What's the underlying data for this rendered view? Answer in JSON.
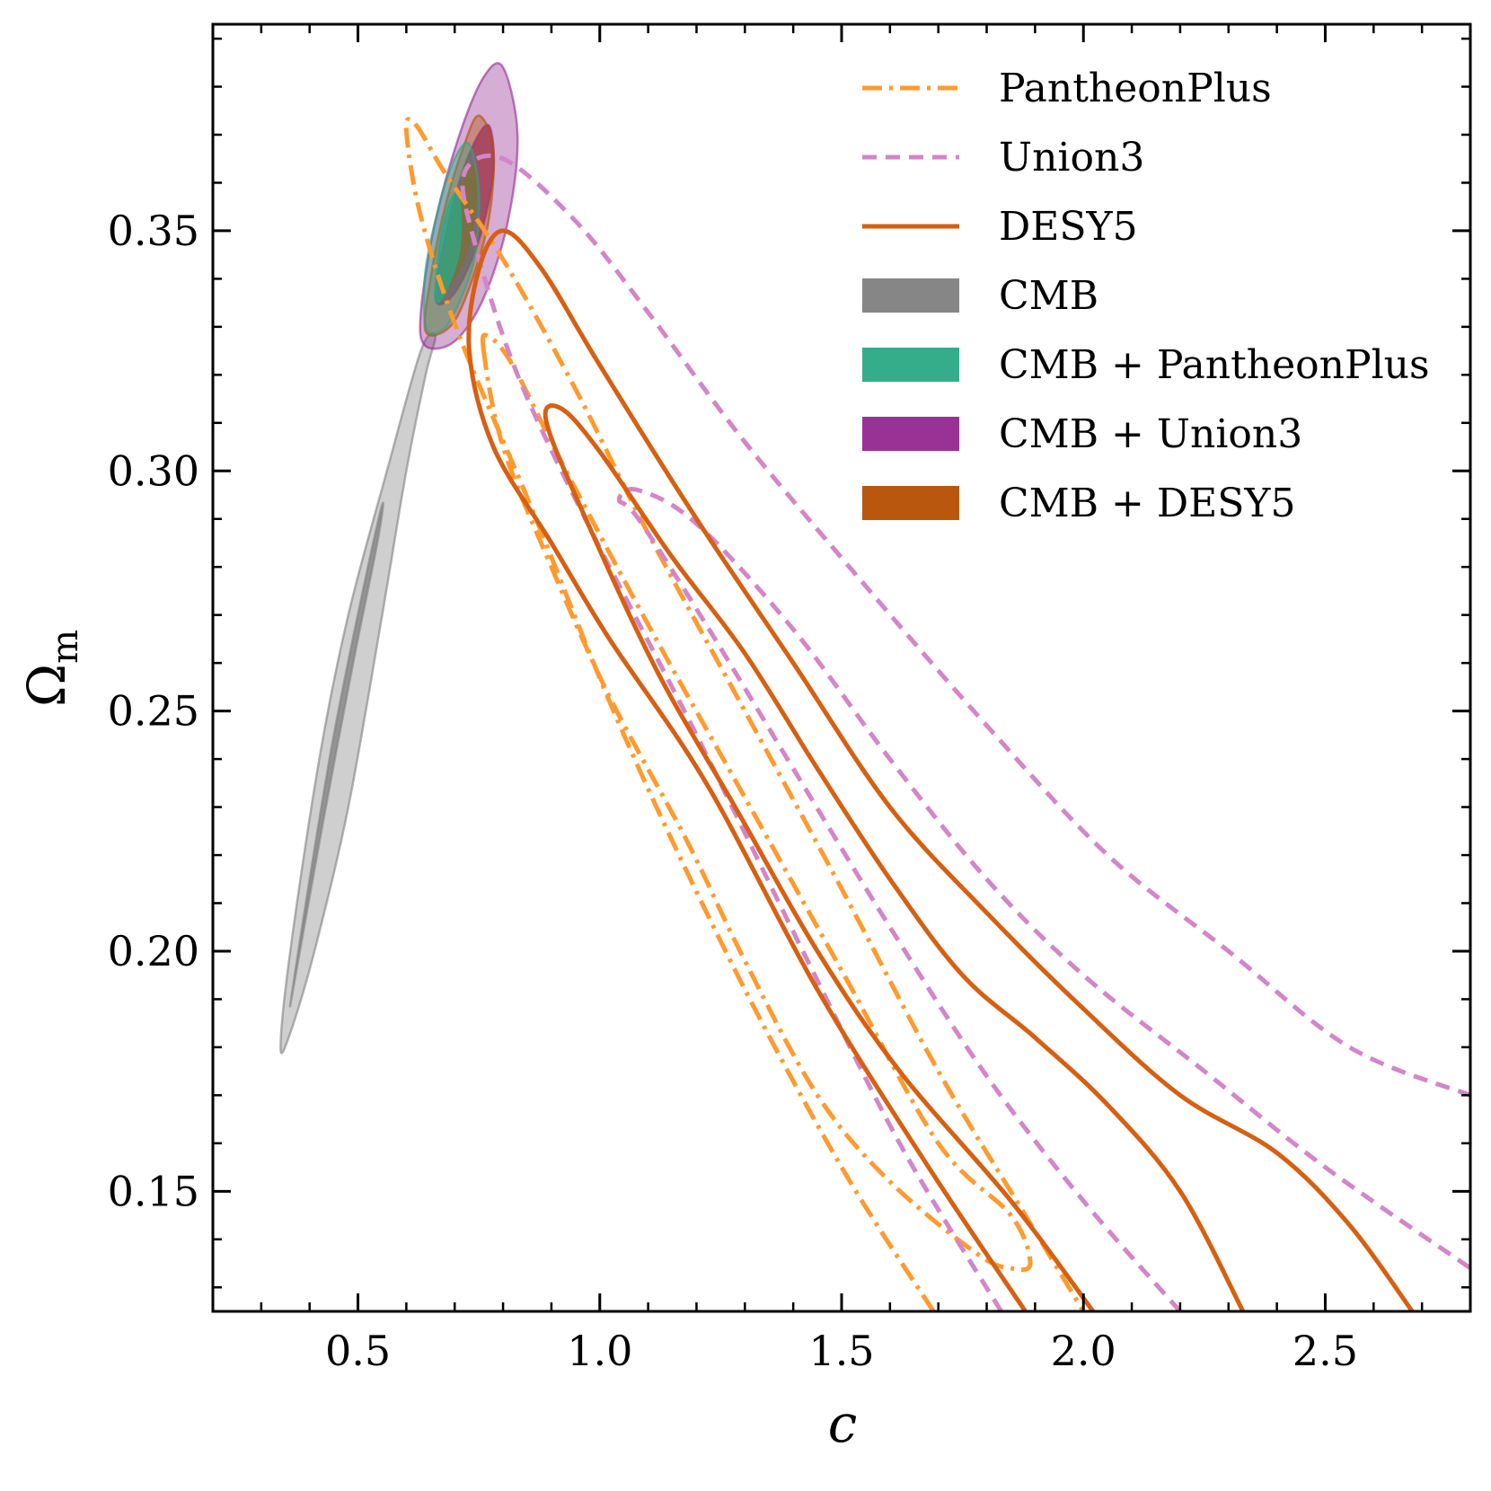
{
  "chart_data": {
    "type": "contour",
    "xlabel": "c",
    "ylabel": "Ω",
    "ylabel_sub": "m",
    "xlim": [
      0.2,
      2.8
    ],
    "ylim": [
      0.125,
      0.393
    ],
    "xticks": [
      0.5,
      1.0,
      1.5,
      2.0,
      2.5
    ],
    "xtick_labels": [
      "0.5",
      "1.0",
      "1.5",
      "2.0",
      "2.5"
    ],
    "yticks": [
      0.15,
      0.2,
      0.25,
      0.3,
      0.35
    ],
    "ytick_labels": [
      "0.15",
      "0.20",
      "0.25",
      "0.30",
      "0.35"
    ],
    "legend": {
      "position": "top-right",
      "entries": [
        {
          "label": "PantheonPlus",
          "style": "dashdot",
          "color": "#ff9a2e"
        },
        {
          "label": "Union3",
          "style": "dashed",
          "color": "#d485c8"
        },
        {
          "label": "DESY5",
          "style": "solid",
          "color": "#d66012"
        },
        {
          "label": "CMB",
          "style": "filled",
          "color": "#808080"
        },
        {
          "label": "CMB + PantheonPlus",
          "style": "filled",
          "color": "#2aa985"
        },
        {
          "label": "CMB + Union3",
          "style": "filled",
          "color": "#93278f"
        },
        {
          "label": "CMB + DESY5",
          "style": "filled",
          "color": "#b44e00"
        }
      ]
    },
    "series": [
      {
        "name": "CMB",
        "kind": "filled",
        "color": "#808080",
        "contours": [
          {
            "level": "95%",
            "points": [
              [
                0.34,
                0.18
              ],
              [
                0.36,
                0.2
              ],
              [
                0.42,
                0.24
              ],
              [
                0.48,
                0.27
              ],
              [
                0.56,
                0.3
              ],
              [
                0.63,
                0.325
              ],
              [
                0.66,
                0.328
              ],
              [
                0.64,
                0.32
              ],
              [
                0.6,
                0.3
              ],
              [
                0.55,
                0.27
              ],
              [
                0.48,
                0.23
              ],
              [
                0.41,
                0.2
              ],
              [
                0.36,
                0.183
              ]
            ]
          },
          {
            "level": "68%",
            "points": [
              [
                0.36,
                0.189
              ],
              [
                0.4,
                0.215
              ],
              [
                0.45,
                0.245
              ],
              [
                0.51,
                0.275
              ],
              [
                0.55,
                0.293
              ],
              [
                0.54,
                0.285
              ],
              [
                0.49,
                0.26
              ],
              [
                0.43,
                0.228
              ],
              [
                0.38,
                0.2
              ]
            ]
          }
        ]
      },
      {
        "name": "CMB + Union3",
        "kind": "filled",
        "color": "#93278f",
        "contours": [
          {
            "level": "95%",
            "points": [
              [
                0.64,
                0.326
              ],
              [
                0.63,
                0.333
              ],
              [
                0.66,
                0.352
              ],
              [
                0.71,
                0.37
              ],
              [
                0.76,
                0.382
              ],
              [
                0.8,
                0.384
              ],
              [
                0.83,
                0.37
              ],
              [
                0.81,
                0.352
              ],
              [
                0.76,
                0.336
              ],
              [
                0.7,
                0.327
              ]
            ]
          },
          {
            "level": "68%",
            "points": [
              [
                0.66,
                0.336
              ],
              [
                0.69,
                0.353
              ],
              [
                0.73,
                0.366
              ],
              [
                0.77,
                0.372
              ],
              [
                0.78,
                0.362
              ],
              [
                0.75,
                0.348
              ],
              [
                0.7,
                0.337
              ]
            ]
          }
        ]
      },
      {
        "name": "CMB + DESY5",
        "kind": "filled",
        "color": "#b44e00",
        "contours": [
          {
            "level": "95%",
            "points": [
              [
                0.64,
                0.329
              ],
              [
                0.65,
                0.34
              ],
              [
                0.68,
                0.355
              ],
              [
                0.72,
                0.368
              ],
              [
                0.75,
                0.374
              ],
              [
                0.78,
                0.367
              ],
              [
                0.77,
                0.352
              ],
              [
                0.73,
                0.338
              ],
              [
                0.69,
                0.33
              ]
            ]
          },
          {
            "level": "68%",
            "points": [
              [
                0.67,
                0.337
              ],
              [
                0.69,
                0.35
              ],
              [
                0.72,
                0.361
              ],
              [
                0.74,
                0.363
              ],
              [
                0.74,
                0.352
              ],
              [
                0.71,
                0.342
              ]
            ]
          }
        ]
      },
      {
        "name": "CMB + PantheonPlus",
        "kind": "filled",
        "color": "#2aa985",
        "contours": [
          {
            "level": "95%",
            "points": [
              [
                0.64,
                0.33
              ],
              [
                0.64,
                0.342
              ],
              [
                0.67,
                0.356
              ],
              [
                0.7,
                0.365
              ],
              [
                0.73,
                0.368
              ],
              [
                0.75,
                0.358
              ],
              [
                0.74,
                0.344
              ],
              [
                0.7,
                0.333
              ],
              [
                0.67,
                0.329
              ]
            ]
          },
          {
            "level": "68%",
            "points": [
              [
                0.66,
                0.336
              ],
              [
                0.67,
                0.348
              ],
              [
                0.69,
                0.356
              ],
              [
                0.71,
                0.357
              ],
              [
                0.71,
                0.346
              ],
              [
                0.68,
                0.337
              ]
            ]
          }
        ]
      },
      {
        "name": "PantheonPlus",
        "kind": "line",
        "style": "dashdot",
        "color": "#ff9a2e",
        "contours": [
          {
            "level": "95%",
            "closed": false,
            "points": [
              [
                1.69,
                0.125
              ],
              [
                1.5,
                0.155
              ],
              [
                1.28,
                0.196
              ],
              [
                1.05,
                0.245
              ],
              [
                0.86,
                0.292
              ],
              [
                0.71,
                0.328
              ],
              [
                0.63,
                0.353
              ],
              [
                0.6,
                0.371
              ],
              [
                0.62,
                0.372
              ],
              [
                0.68,
                0.362
              ],
              [
                0.8,
                0.344
              ],
              [
                0.95,
                0.317
              ],
              [
                1.1,
                0.287
              ],
              [
                1.3,
                0.25
              ],
              [
                1.5,
                0.213
              ],
              [
                1.7,
                0.175
              ],
              [
                1.88,
                0.145
              ],
              [
                2.0,
                0.125
              ]
            ]
          },
          {
            "level": "68%",
            "closed": true,
            "points": [
              [
                0.76,
                0.325
              ],
              [
                0.77,
                0.328
              ],
              [
                0.82,
                0.322
              ],
              [
                0.92,
                0.302
              ],
              [
                1.1,
                0.268
              ],
              [
                1.3,
                0.232
              ],
              [
                1.5,
                0.196
              ],
              [
                1.7,
                0.16
              ],
              [
                1.85,
                0.145
              ],
              [
                1.89,
                0.135
              ],
              [
                1.85,
                0.134
              ],
              [
                1.78,
                0.137
              ],
              [
                1.6,
                0.152
              ],
              [
                1.45,
                0.17
              ],
              [
                1.3,
                0.198
              ],
              [
                1.18,
                0.223
              ],
              [
                1.02,
                0.253
              ],
              [
                0.9,
                0.28
              ],
              [
                0.8,
                0.305
              ]
            ]
          }
        ]
      },
      {
        "name": "Union3",
        "kind": "line",
        "style": "dashed",
        "color": "#d485c8",
        "contours": [
          {
            "level": "95%",
            "closed": false,
            "points": [
              [
                1.83,
                0.125
              ],
              [
                1.62,
                0.16
              ],
              [
                1.42,
                0.2
              ],
              [
                1.2,
                0.245
              ],
              [
                0.98,
                0.288
              ],
              [
                0.83,
                0.32
              ],
              [
                0.74,
                0.348
              ],
              [
                0.72,
                0.362
              ],
              [
                0.8,
                0.365
              ],
              [
                0.95,
                0.352
              ],
              [
                1.1,
                0.333
              ],
              [
                1.3,
                0.306
              ],
              [
                1.55,
                0.276
              ],
              [
                1.8,
                0.247
              ],
              [
                2.05,
                0.22
              ],
              [
                2.3,
                0.2
              ],
              [
                2.55,
                0.18
              ],
              [
                2.8,
                0.17
              ]
            ]
          },
          {
            "level": "68%",
            "closed": false,
            "points": [
              [
                2.2,
                0.125
              ],
              [
                2.0,
                0.148
              ],
              [
                1.8,
                0.174
              ],
              [
                1.6,
                0.205
              ],
              [
                1.4,
                0.238
              ],
              [
                1.22,
                0.268
              ],
              [
                1.08,
                0.29
              ],
              [
                1.04,
                0.294
              ],
              [
                1.08,
                0.296
              ],
              [
                1.2,
                0.289
              ],
              [
                1.4,
                0.267
              ],
              [
                1.6,
                0.24
              ],
              [
                1.8,
                0.215
              ],
              [
                2.0,
                0.195
              ],
              [
                2.25,
                0.175
              ],
              [
                2.5,
                0.155
              ],
              [
                2.8,
                0.134
              ]
            ]
          }
        ]
      },
      {
        "name": "DESY5",
        "kind": "line",
        "style": "solid",
        "color": "#d66012",
        "contours": [
          {
            "level": "95%",
            "closed": false,
            "points": [
              [
                1.88,
                0.125
              ],
              [
                1.68,
                0.155
              ],
              [
                1.45,
                0.192
              ],
              [
                1.22,
                0.235
              ],
              [
                1.02,
                0.265
              ],
              [
                0.9,
                0.285
              ],
              [
                0.78,
                0.305
              ],
              [
                0.73,
                0.325
              ],
              [
                0.75,
                0.342
              ],
              [
                0.8,
                0.35
              ],
              [
                0.88,
                0.342
              ],
              [
                1.0,
                0.322
              ],
              [
                1.2,
                0.29
              ],
              [
                1.4,
                0.26
              ],
              [
                1.6,
                0.23
              ],
              [
                1.8,
                0.208
              ],
              [
                2.0,
                0.188
              ],
              [
                2.2,
                0.17
              ],
              [
                2.4,
                0.158
              ],
              [
                2.55,
                0.143
              ],
              [
                2.68,
                0.125
              ]
            ]
          },
          {
            "level": "68%",
            "closed": false,
            "points": [
              [
                2.02,
                0.125
              ],
              [
                1.85,
                0.148
              ],
              [
                1.62,
                0.175
              ],
              [
                1.45,
                0.2
              ],
              [
                1.28,
                0.23
              ],
              [
                1.12,
                0.258
              ],
              [
                0.98,
                0.288
              ],
              [
                0.89,
                0.31
              ],
              [
                0.92,
                0.313
              ],
              [
                1.0,
                0.304
              ],
              [
                1.15,
                0.282
              ],
              [
                1.3,
                0.262
              ],
              [
                1.45,
                0.238
              ],
              [
                1.6,
                0.215
              ],
              [
                1.75,
                0.195
              ],
              [
                1.9,
                0.182
              ],
              [
                2.05,
                0.168
              ],
              [
                2.2,
                0.15
              ],
              [
                2.33,
                0.125
              ]
            ]
          }
        ]
      }
    ]
  }
}
